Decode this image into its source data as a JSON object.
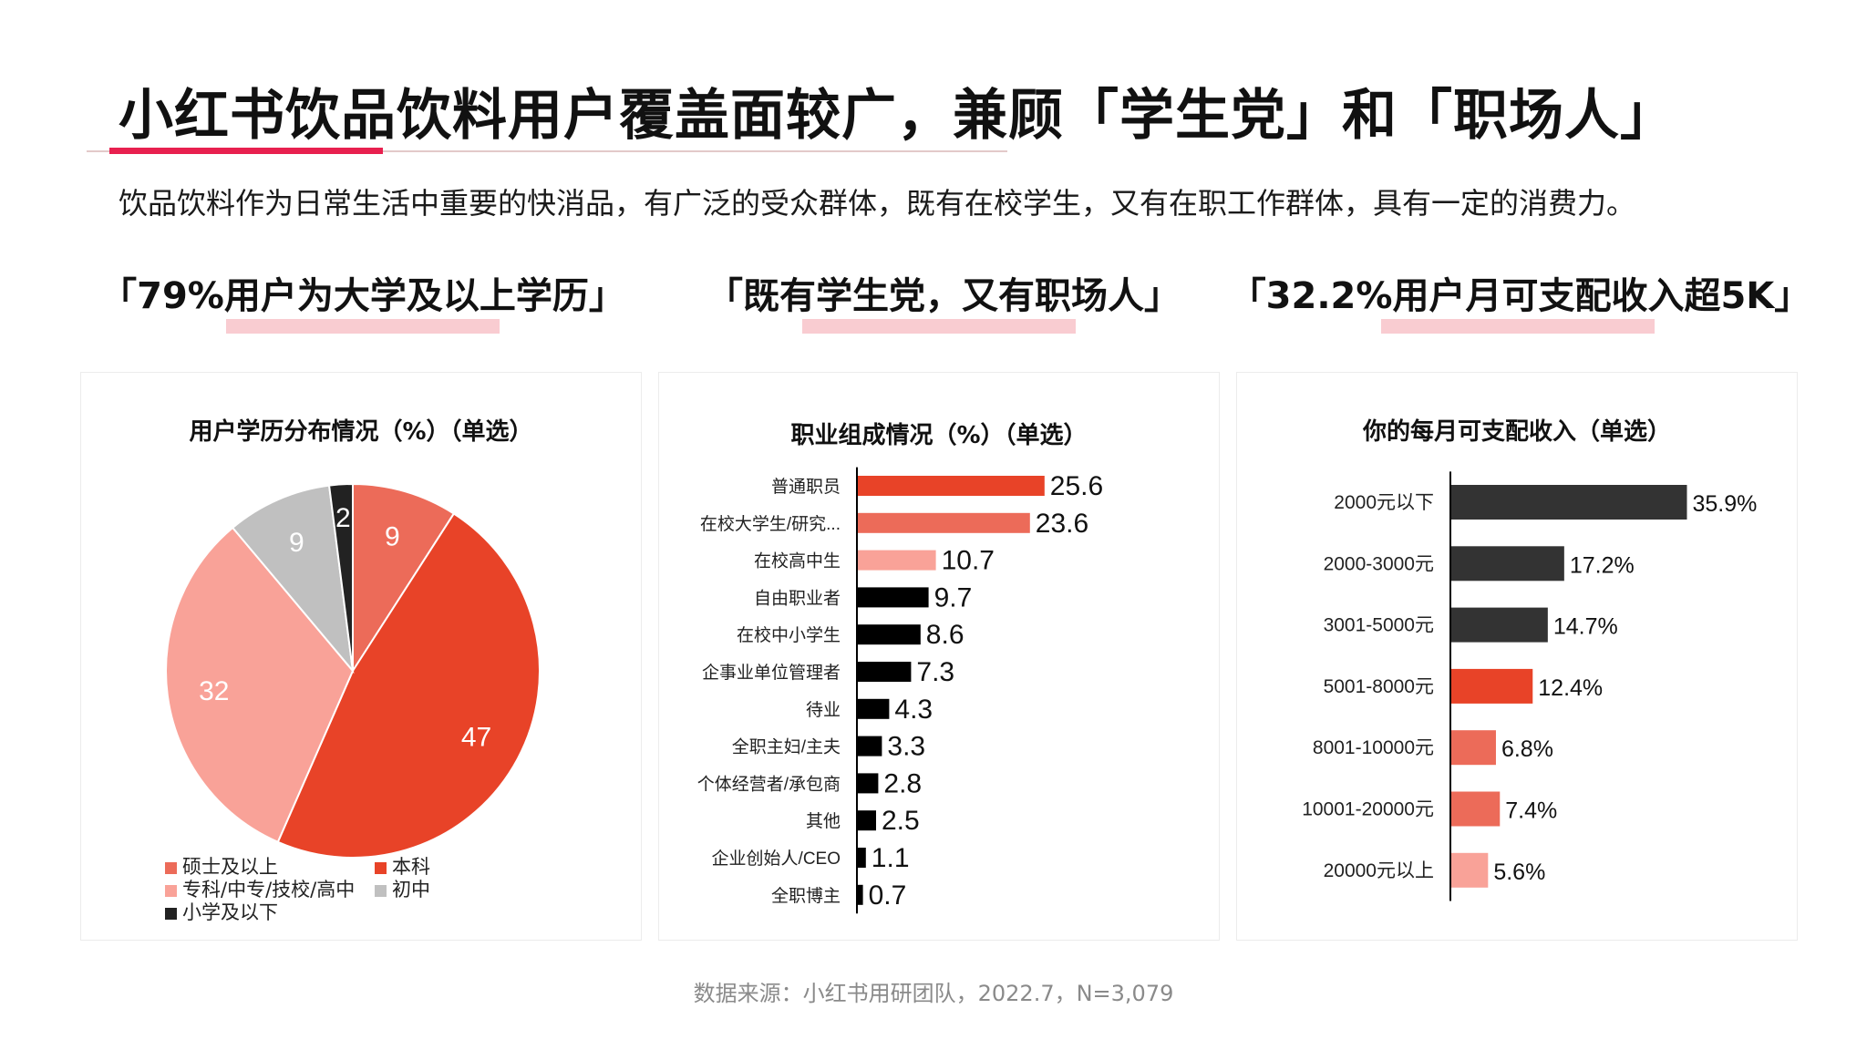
{
  "header": {
    "title": "小红书饮品饮料用户覆盖面较广，兼顾「学生党」和「职场人」",
    "subtitle": "饮品饮料作为日常生活中重要的快消品，有广泛的受众群体，既有在校学生，又有在职工作群体，具有一定的消费力。"
  },
  "headlines": [
    "「79%用户为大学及以上学历」",
    "「既有学生党，又有职场人」",
    "「32.2%用户月可支配收入超5K」"
  ],
  "colors": {
    "accent_red": "#e8204f",
    "highlight_pink": "#f9ccd1",
    "dark": "#333333",
    "red": "#e84328",
    "salmon": "#ec6b59",
    "pink": "#f9a298",
    "grey": "#c0c0c0",
    "black": "#000000"
  },
  "source": "数据来源：小红书用研团队，2022.7，N=3,079",
  "chart_data": [
    {
      "type": "pie",
      "title": "用户学历分布情况（%）（单选）",
      "categories": [
        "硕士及以上",
        "本科",
        "专科/中专/技校/高中",
        "初中",
        "小学及以下"
      ],
      "values": [
        9,
        47,
        32,
        9,
        2
      ],
      "colors": [
        "#ec6b59",
        "#e84328",
        "#f9a298",
        "#c0c0c0",
        "#222222"
      ],
      "legend": [
        "硕士及以上",
        "本科",
        "专科/中专/技校/高中",
        "初中",
        "小学及以下"
      ],
      "legend_position": "bottom"
    },
    {
      "type": "bar",
      "orientation": "horizontal",
      "title": "职业组成情况（%）（单选）",
      "categories": [
        "普通职员",
        "在校大学生/研究...",
        "在校高中生",
        "自由职业者",
        "在校中小学生",
        "企事业单位管理者",
        "待业",
        "全职主妇/主夫",
        "个体经营者/承包商",
        "其他",
        "企业创始人/CEO",
        "全职博主"
      ],
      "values": [
        25.6,
        23.6,
        10.7,
        9.7,
        8.6,
        7.3,
        4.3,
        3.3,
        2.8,
        2.5,
        1.1,
        0.7
      ],
      "labels": [
        "25.6",
        "23.6",
        "10.7",
        "9.7",
        "8.6",
        "7.3",
        "4.3",
        "3.3",
        "2.8",
        "2.5",
        "1.1",
        "0.7"
      ],
      "colors": [
        "#e84328",
        "#ec6b59",
        "#f9a298",
        "#000000",
        "#000000",
        "#000000",
        "#000000",
        "#000000",
        "#000000",
        "#000000",
        "#000000",
        "#000000"
      ]
    },
    {
      "type": "bar",
      "orientation": "horizontal",
      "title": "你的每月可支配收入（单选）",
      "categories": [
        "2000元以下",
        "2000-3000元",
        "3001-5000元",
        "5001-8000元",
        "8001-10000元",
        "10001-20000元",
        "20000元以上"
      ],
      "values": [
        35.9,
        17.2,
        14.7,
        12.4,
        6.8,
        7.4,
        5.6
      ],
      "labels": [
        "35.9%",
        "17.2%",
        "14.7%",
        "12.4%",
        "6.8%",
        "7.4%",
        "5.6%"
      ],
      "colors": [
        "#333333",
        "#333333",
        "#333333",
        "#e84328",
        "#ec6b59",
        "#ec6b59",
        "#f9a298"
      ]
    }
  ]
}
